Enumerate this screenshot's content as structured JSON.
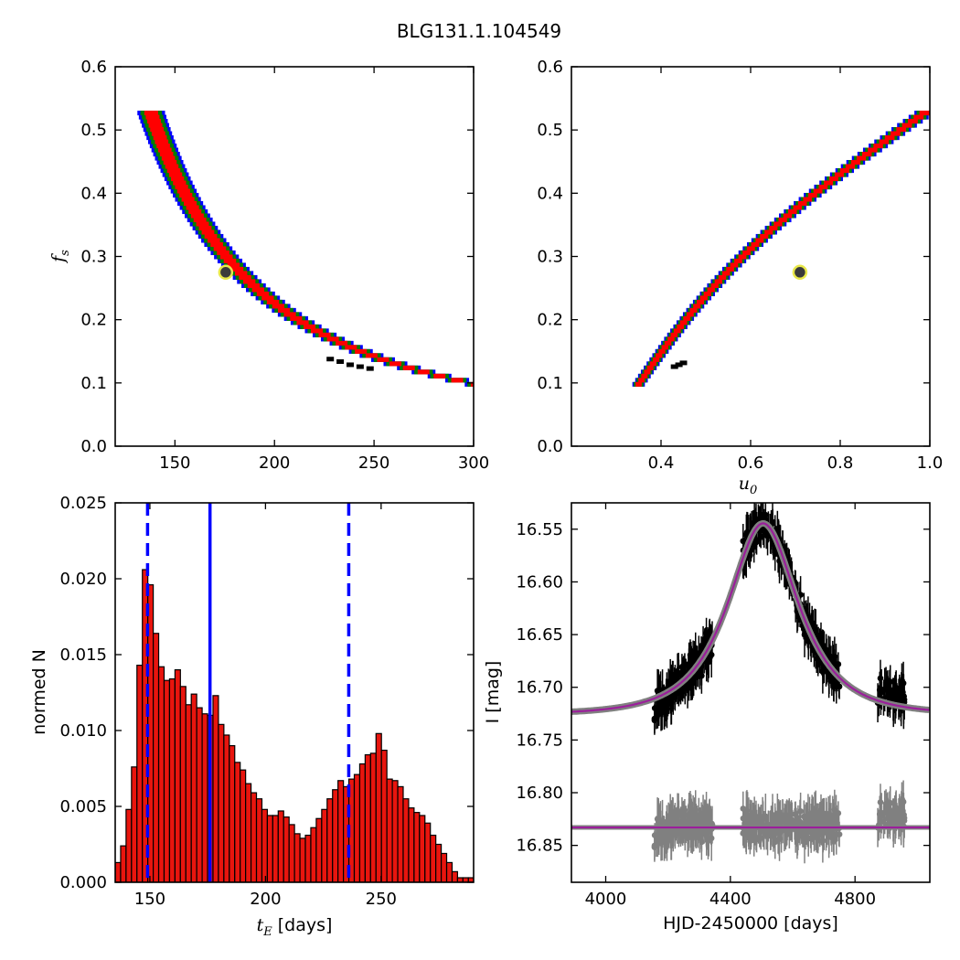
{
  "figure": {
    "title": "BLG131.1.104549"
  },
  "colors": {
    "blue_region": "#0000ff",
    "green_region": "#007f00",
    "red_region": "#ff0000",
    "best_point": "#000000",
    "marker_edge": "#e8e84a",
    "marker_fill": "#3a3a3a",
    "hist_bar": "#e8150e",
    "hist_edge": "#000000",
    "vline": "#0000ff",
    "model_main": "#9b1f9b",
    "model_band": "#808080",
    "data_black": "#000000",
    "resid_gray": "#808080"
  },
  "chart_data": [
    {
      "id": "tE_fs",
      "type": "heatmap",
      "xlabel": "",
      "ylabel": "f_s",
      "xlim": [
        120,
        300
      ],
      "ylim": [
        0.0,
        0.6
      ],
      "xticks": [
        "150",
        "200",
        "250",
        "300"
      ],
      "yticks": [
        "0.0",
        "0.1",
        "0.2",
        "0.3",
        "0.4",
        "0.5",
        "0.6"
      ],
      "xtick_values": [
        150,
        200,
        250,
        300
      ],
      "ytick_values": [
        0.0,
        0.1,
        0.2,
        0.3,
        0.4,
        0.5,
        0.6
      ],
      "regions": [
        "blue",
        "green",
        "red",
        "black"
      ],
      "best_fit": {
        "tE": 175.5,
        "fs": 0.275
      },
      "ridge": {
        "fs_start": 0.53,
        "fs_end": 0.095,
        "x_at_start": 137,
        "x_at_end": 289
      }
    },
    {
      "id": "u0_fs",
      "type": "heatmap",
      "xlabel": "u_0",
      "ylabel": "",
      "xlim": [
        0.2,
        1.0
      ],
      "ylim": [
        0.0,
        0.6
      ],
      "xticks": [
        "0.4",
        "0.6",
        "0.8",
        "1.0"
      ],
      "yticks": [
        "0.0",
        "0.1",
        "0.2",
        "0.3",
        "0.4",
        "0.5",
        "0.6"
      ],
      "xtick_values": [
        0.4,
        0.6,
        0.8,
        1.0
      ],
      "ytick_values": [
        0.0,
        0.1,
        0.2,
        0.3,
        0.4,
        0.5,
        0.6
      ],
      "regions": [
        "blue",
        "green",
        "red",
        "black"
      ],
      "best_fit": {
        "u0": 0.71,
        "fs": 0.275
      },
      "ridge": {
        "fs_start": 0.095,
        "fs_end": 0.53,
        "x_at_start": 0.35,
        "x_at_end": 1.0
      }
    },
    {
      "id": "tE_hist",
      "type": "bar",
      "xlabel": "t_E  [days]",
      "ylabel": "normed N",
      "xlim": [
        135,
        290
      ],
      "ylim": [
        0.0,
        0.025
      ],
      "xticks": [
        "150",
        "200",
        "250"
      ],
      "yticks": [
        "0.000",
        "0.005",
        "0.010",
        "0.015",
        "0.020",
        "0.025"
      ],
      "xtick_values": [
        150,
        200,
        250
      ],
      "ytick_values": [
        0.0,
        0.005,
        0.01,
        0.015,
        0.02,
        0.025
      ],
      "bin_start": 135,
      "bin_width": 2.35,
      "values": [
        0.0013,
        0.0024,
        0.0048,
        0.0076,
        0.0143,
        0.0206,
        0.0196,
        0.0164,
        0.0142,
        0.0133,
        0.0134,
        0.014,
        0.0129,
        0.0117,
        0.0124,
        0.0115,
        0.0111,
        0.011,
        0.0123,
        0.0104,
        0.0097,
        0.009,
        0.0079,
        0.0074,
        0.0065,
        0.0059,
        0.0055,
        0.0048,
        0.0044,
        0.0044,
        0.0047,
        0.0043,
        0.0038,
        0.0032,
        0.0029,
        0.0031,
        0.0036,
        0.0042,
        0.0048,
        0.0055,
        0.0061,
        0.0067,
        0.0063,
        0.0068,
        0.0071,
        0.0078,
        0.0084,
        0.0085,
        0.0098,
        0.0087,
        0.0068,
        0.0067,
        0.0063,
        0.0055,
        0.0049,
        0.0046,
        0.0044,
        0.0039,
        0.0031,
        0.0025,
        0.0019,
        0.0013,
        0.0007,
        0.0003,
        0.0003,
        0.0003,
        0.0002,
        0.0002,
        0.0001
      ],
      "vlines": [
        {
          "x": 149,
          "style": "dashed"
        },
        {
          "x": 176,
          "style": "solid"
        },
        {
          "x": 236,
          "style": "dashed"
        }
      ]
    },
    {
      "id": "lightcurve",
      "type": "scatter",
      "xlabel": "HJD-2450000 [days]",
      "ylabel": "I [mag]",
      "xlim": [
        3890,
        5040
      ],
      "ylim": [
        16.885,
        16.525
      ],
      "xticks": [
        "4000",
        "4400",
        "4800"
      ],
      "yticks": [
        "16.55",
        "16.60",
        "16.65",
        "16.70",
        "16.75",
        "16.80",
        "16.85"
      ],
      "xtick_values": [
        4000,
        4400,
        4800
      ],
      "ytick_values": [
        16.55,
        16.6,
        16.65,
        16.7,
        16.75,
        16.8,
        16.85
      ],
      "model": {
        "t0": 4505,
        "tE": 176,
        "u0": 0.71,
        "fs": 0.275,
        "I_base": 16.726
      },
      "residual_offset": 16.833,
      "data_segments": [
        {
          "t_start": 4155,
          "t_end": 4345,
          "n": 160
        },
        {
          "t_start": 4440,
          "t_end": 4750,
          "n": 240
        },
        {
          "t_start": 4870,
          "t_end": 4960,
          "n": 55
        }
      ]
    }
  ]
}
